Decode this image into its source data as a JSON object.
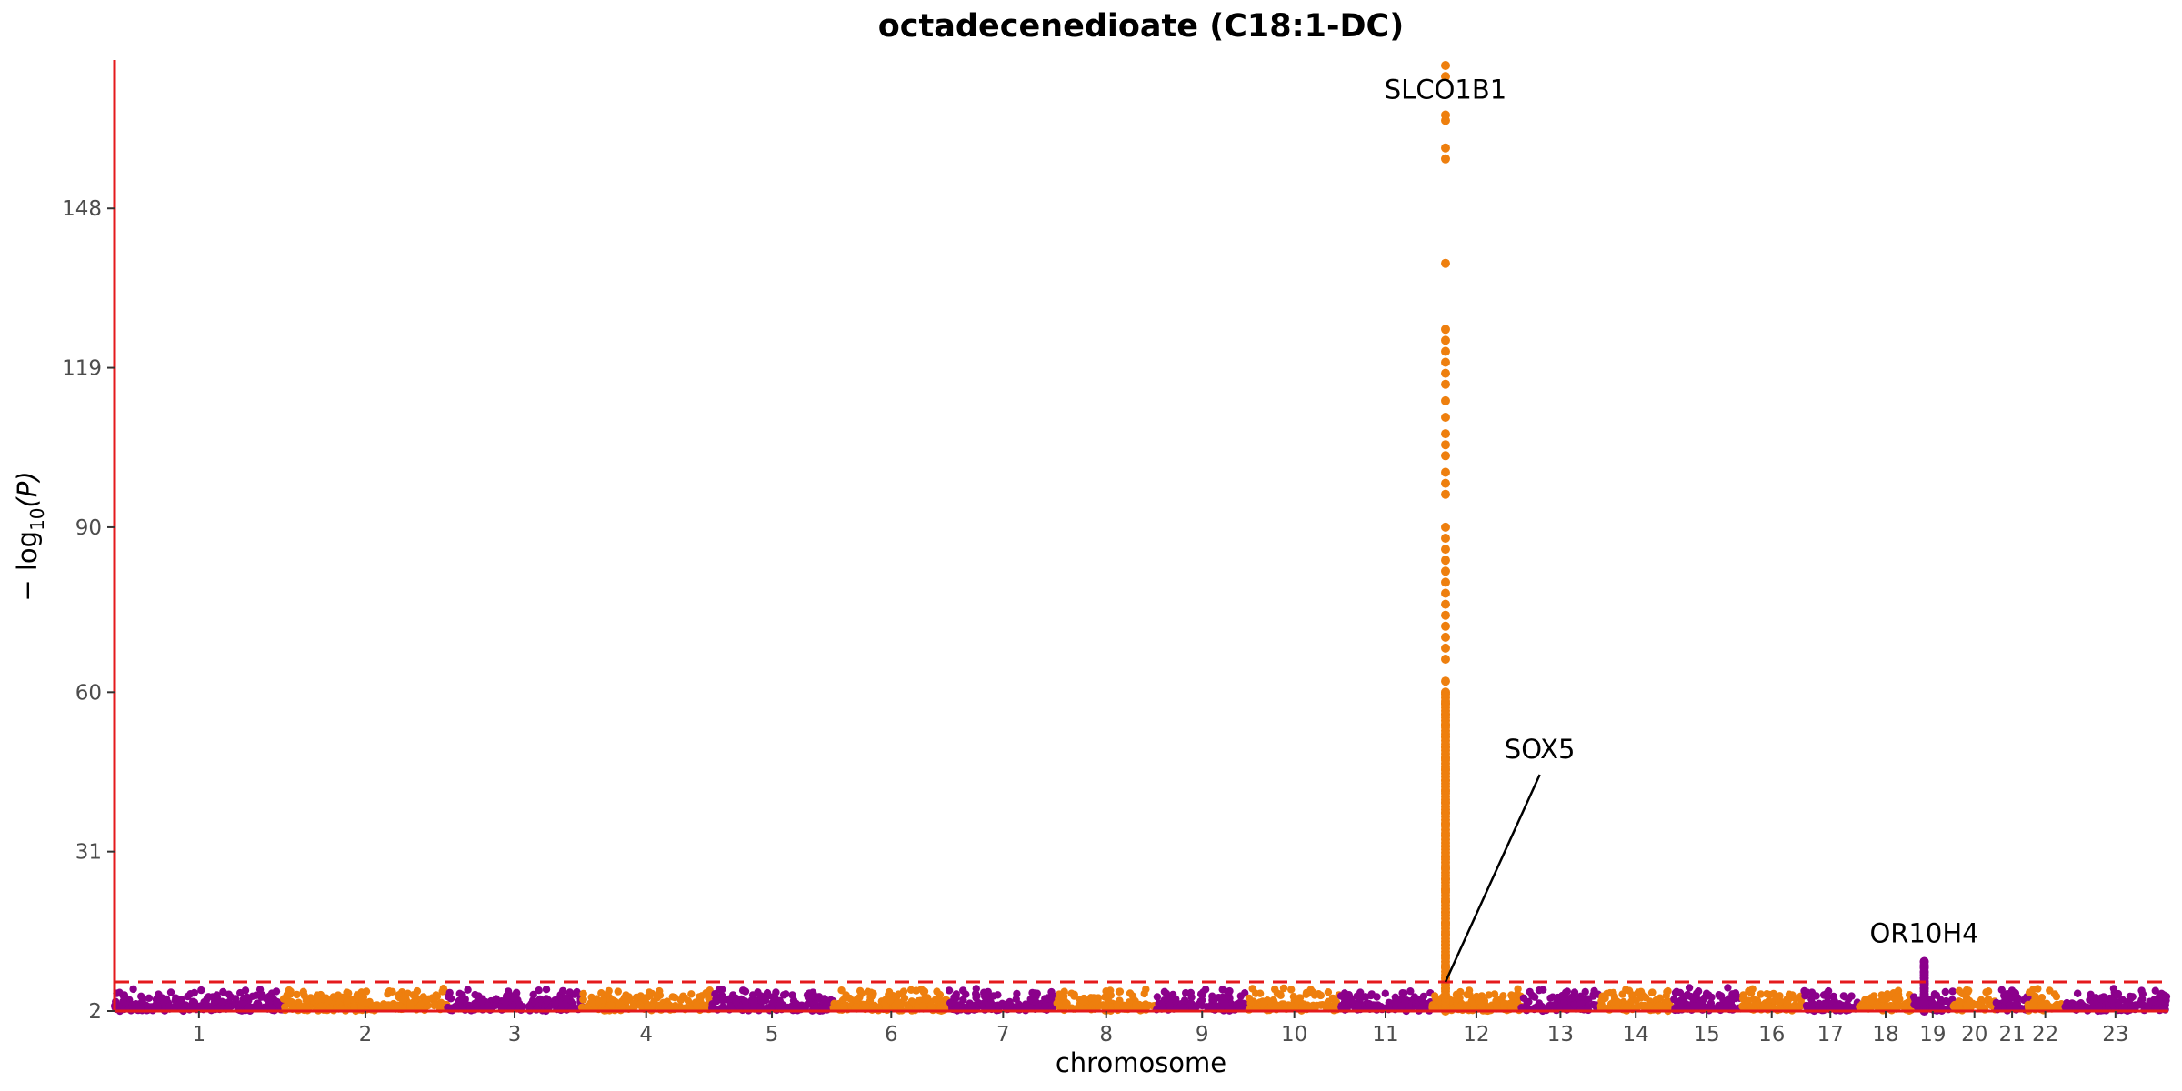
{
  "chart_data": {
    "type": "scatter",
    "title": "octadecenedioate (C18:1-DC)",
    "xlabel": "chromosome",
    "ylabel": "−log10(P)",
    "ylabel_parts": {
      "prefix": "− log",
      "sub": "10",
      "suffix": "(P)"
    },
    "y_ticks": [
      2,
      31,
      60,
      90,
      119,
      148
    ],
    "ylim": [
      2,
      175
    ],
    "threshold": 7.3,
    "colors": {
      "odd": "#8B008B",
      "even": "#EE7F0E",
      "axis": "#E41A1C",
      "threshold": "#E41A1C",
      "text": "#000000"
    },
    "chromosomes": [
      {
        "chr": "1",
        "start": 0,
        "end": 249
      },
      {
        "chr": "2",
        "start": 249,
        "end": 491
      },
      {
        "chr": "3",
        "start": 491,
        "end": 689
      },
      {
        "chr": "4",
        "start": 689,
        "end": 879
      },
      {
        "chr": "5",
        "start": 879,
        "end": 1060
      },
      {
        "chr": "6",
        "start": 1060,
        "end": 1231
      },
      {
        "chr": "7",
        "start": 1231,
        "end": 1390
      },
      {
        "chr": "8",
        "start": 1390,
        "end": 1535
      },
      {
        "chr": "9",
        "start": 1535,
        "end": 1673
      },
      {
        "chr": "10",
        "start": 1673,
        "end": 1807
      },
      {
        "chr": "11",
        "start": 1807,
        "end": 1942
      },
      {
        "chr": "12",
        "start": 1942,
        "end": 2075
      },
      {
        "chr": "13",
        "start": 2075,
        "end": 2190
      },
      {
        "chr": "14",
        "start": 2190,
        "end": 2297
      },
      {
        "chr": "15",
        "start": 2297,
        "end": 2399
      },
      {
        "chr": "16",
        "start": 2399,
        "end": 2489
      },
      {
        "chr": "17",
        "start": 2489,
        "end": 2572
      },
      {
        "chr": "18",
        "start": 2572,
        "end": 2652
      },
      {
        "chr": "19",
        "start": 2652,
        "end": 2711
      },
      {
        "chr": "20",
        "start": 2711,
        "end": 2775
      },
      {
        "chr": "21",
        "start": 2775,
        "end": 2822
      },
      {
        "chr": "22",
        "start": 2822,
        "end": 2873
      },
      {
        "chr": "23",
        "start": 2873,
        "end": 3029
      }
    ],
    "peaks": [
      {
        "chr": "12",
        "pos": 21,
        "values": [
          174,
          172,
          165,
          164,
          159,
          157,
          138,
          126,
          124,
          122,
          120,
          118,
          116,
          113,
          110,
          107,
          105,
          103,
          100,
          98,
          96,
          90,
          88,
          86,
          84,
          82,
          80,
          78,
          76,
          74,
          72,
          70,
          68,
          66,
          62,
          60,
          58,
          56,
          54,
          52,
          50,
          48,
          46,
          44,
          42,
          40,
          38,
          36,
          34,
          32,
          30,
          28,
          26,
          24,
          22,
          20,
          18,
          16,
          14,
          12,
          10,
          8,
          6,
          4
        ]
      },
      {
        "chr": "19",
        "pos": 17,
        "values": [
          11,
          10,
          9,
          8,
          7,
          6,
          5,
          4
        ]
      }
    ],
    "annotations": [
      {
        "label": "SLCO1B1",
        "chr": "12",
        "pos": 21,
        "value": 166,
        "text_value": 168
      },
      {
        "label": "SOX5",
        "chr": "12",
        "pos": 21,
        "value": 7.3,
        "text_value": 48,
        "line_to": {
          "chr": "13",
          "pos": 27,
          "value": 45
        }
      },
      {
        "label": "OR10H4",
        "chr": "19",
        "pos": 17,
        "value": 11,
        "text_value": 14.5
      }
    ]
  }
}
